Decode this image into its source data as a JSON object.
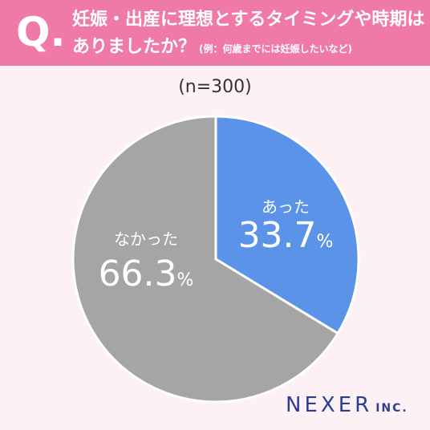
{
  "question": {
    "mark": "Q.",
    "line1": "妊娠・出産に理想とするタイミングや時期は",
    "line2": "ありましたか？",
    "note": "(例：何歳までには妊娠したいなど)"
  },
  "sample": "(n=300)",
  "brand": {
    "main": "NEXER",
    "sub": "INC."
  },
  "chart_data": {
    "type": "pie",
    "labels": [
      "あった",
      "なかった"
    ],
    "values": [
      33.7,
      66.3
    ],
    "display_values": [
      "33.7",
      "66.3"
    ],
    "unit": "%",
    "colors": [
      "#5b93e8",
      "#a5a5a5"
    ]
  }
}
